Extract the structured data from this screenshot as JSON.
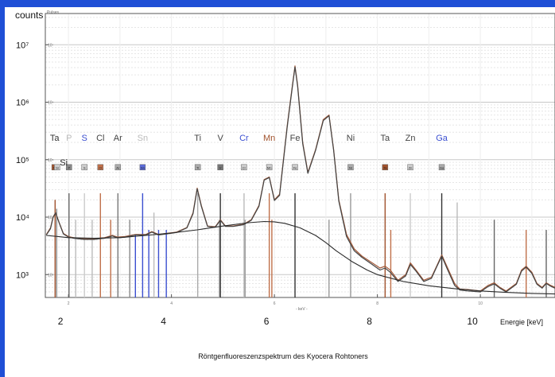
{
  "chart_data": {
    "type": "line",
    "title": "",
    "caption": "Röntgenfluoreszenzspektrum des Kyocera Rohtoners",
    "ylabel": "counts",
    "ylabel_small": "Pulses",
    "xlabel": "Energie [keV]",
    "xlabel_small": "- keV -",
    "xlim": [
      1.55,
      11.45
    ],
    "ylim": [
      400,
      35000000
    ],
    "yscale": "log",
    "grid": true,
    "x_ticks": [
      2,
      4,
      6,
      8,
      10
    ],
    "y_ticks": [
      {
        "value": 1000,
        "label": "10³",
        "small": "10³"
      },
      {
        "value": 10000,
        "label": "10⁴",
        "small": "10⁴"
      },
      {
        "value": 100000,
        "label": "10⁵",
        "small": "10⁵"
      },
      {
        "value": 1000000,
        "label": "10⁶",
        "small": "10⁶"
      },
      {
        "value": 10000000,
        "label": "10⁷",
        "small": "10⁷"
      }
    ],
    "element_labels": [
      {
        "text": "Ta",
        "x": 1.73,
        "color": "#333333"
      },
      {
        "text": "P",
        "x": 2.01,
        "color": "#bbbbbb"
      },
      {
        "text": "S",
        "x": 2.31,
        "color": "#3b4fd0"
      },
      {
        "text": "Cl",
        "x": 2.62,
        "color": "#444444"
      },
      {
        "text": "Ar",
        "x": 2.96,
        "color": "#444444"
      },
      {
        "text": "Sn",
        "x": 3.44,
        "color": "#bbbbbb"
      },
      {
        "text": "Ti",
        "x": 4.51,
        "color": "#444444"
      },
      {
        "text": "V",
        "x": 4.95,
        "color": "#444444"
      },
      {
        "text": "Cr",
        "x": 5.41,
        "color": "#3b4fd0"
      },
      {
        "text": "Mn",
        "x": 5.9,
        "color": "#a0522d"
      },
      {
        "text": "Fe",
        "x": 6.4,
        "color": "#444444"
      },
      {
        "text": "Ni",
        "x": 7.48,
        "color": "#444444"
      },
      {
        "text": "Ta",
        "x": 8.15,
        "color": "#444444"
      },
      {
        "text": "Zn",
        "x": 8.64,
        "color": "#444444"
      },
      {
        "text": "Ga",
        "x": 9.25,
        "color": "#3b4fd0"
      }
    ],
    "si_label": {
      "text": "Si",
      "x": 1.74
    },
    "marker_boxes": [
      {
        "text": "Ta",
        "x": 1.73,
        "fill": "#a0522d"
      },
      {
        "text": "Si",
        "x": 1.78,
        "fill": "#cccccc"
      },
      {
        "text": "P",
        "x": 2.01,
        "fill": "#888888"
      },
      {
        "text": "S",
        "x": 2.31,
        "fill": "#cccccc"
      },
      {
        "text": "Cl",
        "x": 2.62,
        "fill": "#c0704a"
      },
      {
        "text": "Ar",
        "x": 2.96,
        "fill": "#aaaaaa"
      },
      {
        "text": "Sn",
        "x": 3.44,
        "fill": "#5a6ad8"
      },
      {
        "text": "Ti",
        "x": 4.51,
        "fill": "#aaaaaa"
      },
      {
        "text": "V",
        "x": 4.95,
        "fill": "#777777"
      },
      {
        "text": "Cr",
        "x": 5.41,
        "fill": "#cccccc"
      },
      {
        "text": "Mn",
        "x": 5.9,
        "fill": "#cccccc"
      },
      {
        "text": "Fe",
        "x": 6.4,
        "fill": "#cccccc"
      },
      {
        "text": "Ni",
        "x": 7.48,
        "fill": "#aaaaaa"
      },
      {
        "text": "Ta",
        "x": 8.15,
        "fill": "#a0522d"
      },
      {
        "text": "Zn",
        "x": 8.64,
        "fill": "#cccccc"
      },
      {
        "text": "Ga",
        "x": 9.25,
        "fill": "#aaaaaa"
      }
    ],
    "line_markers": [
      {
        "x": 1.74,
        "top": 20000,
        "color": "#a0522d"
      },
      {
        "x": 1.77,
        "top": 14000,
        "color": "#888888"
      },
      {
        "x": 2.01,
        "top": 26000,
        "color": "#666666"
      },
      {
        "x": 2.14,
        "top": 9000,
        "color": "#bbbbbb"
      },
      {
        "x": 2.31,
        "top": 26000,
        "color": "#cccccc"
      },
      {
        "x": 2.46,
        "top": 9000,
        "color": "#bbbbbb"
      },
      {
        "x": 2.62,
        "top": 26000,
        "color": "#c0704a"
      },
      {
        "x": 2.82,
        "top": 9000,
        "color": "#c0704a"
      },
      {
        "x": 2.96,
        "top": 26000,
        "color": "#777777"
      },
      {
        "x": 3.19,
        "top": 9000,
        "color": "#888888"
      },
      {
        "x": 3.3,
        "top": 5000,
        "color": "#3b4fd0"
      },
      {
        "x": 3.44,
        "top": 26000,
        "color": "#3b4fd0"
      },
      {
        "x": 3.56,
        "top": 6000,
        "color": "#3b4fd0"
      },
      {
        "x": 3.66,
        "top": 12000,
        "color": "#bbbbbb"
      },
      {
        "x": 3.75,
        "top": 6000,
        "color": "#3b4fd0"
      },
      {
        "x": 3.9,
        "top": 6000,
        "color": "#3b4fd0"
      },
      {
        "x": 4.51,
        "top": 26000,
        "color": "#aaaaaa"
      },
      {
        "x": 4.93,
        "top": 9000,
        "color": "#aaaaaa"
      },
      {
        "x": 4.95,
        "top": 26000,
        "color": "#333333"
      },
      {
        "x": 5.41,
        "top": 26000,
        "color": "#bbbbbb"
      },
      {
        "x": 5.43,
        "top": 9000,
        "color": "#999999"
      },
      {
        "x": 5.9,
        "top": 26000,
        "color": "#c0704a"
      },
      {
        "x": 5.95,
        "top": 9000,
        "color": "#c0704a"
      },
      {
        "x": 6.4,
        "top": 26000,
        "color": "#333333"
      },
      {
        "x": 7.06,
        "top": 9000,
        "color": "#999999"
      },
      {
        "x": 7.48,
        "top": 26000,
        "color": "#999999"
      },
      {
        "x": 8.15,
        "top": 26000,
        "color": "#a0522d"
      },
      {
        "x": 8.26,
        "top": 6000,
        "color": "#c0704a"
      },
      {
        "x": 8.64,
        "top": 26000,
        "color": "#cccccc"
      },
      {
        "x": 9.25,
        "top": 26000,
        "color": "#333333"
      },
      {
        "x": 9.55,
        "top": 18000,
        "color": "#bbbbbb"
      },
      {
        "x": 10.27,
        "top": 9000,
        "color": "#666666"
      },
      {
        "x": 10.89,
        "top": 6000,
        "color": "#c0704a"
      },
      {
        "x": 11.28,
        "top": 6000,
        "color": "#666666"
      }
    ],
    "series": [
      {
        "name": "",
        "color": "#a35a3a",
        "x": [
          1.57,
          1.65,
          1.7,
          1.75,
          1.82,
          1.9,
          2.0,
          2.1,
          2.3,
          2.5,
          2.7,
          2.85,
          2.95,
          3.1,
          3.3,
          3.5,
          3.62,
          3.75,
          3.9,
          4.1,
          4.3,
          4.42,
          4.5,
          4.58,
          4.7,
          4.85,
          4.95,
          5.05,
          5.2,
          5.4,
          5.55,
          5.7,
          5.8,
          5.9,
          6.0,
          6.1,
          6.25,
          6.35,
          6.4,
          6.45,
          6.55,
          6.65,
          6.8,
          6.95,
          7.06,
          7.15,
          7.25,
          7.4,
          7.55,
          7.7,
          7.9,
          8.05,
          8.15,
          8.25,
          8.4,
          8.55,
          8.64,
          8.75,
          8.9,
          9.05,
          9.15,
          9.25,
          9.35,
          9.5,
          9.6,
          9.75,
          10.0,
          10.15,
          10.27,
          10.38,
          10.5,
          10.7,
          10.8,
          10.89,
          11.0,
          11.1,
          11.2,
          11.28,
          11.35,
          11.45
        ],
        "y": [
          5000,
          6500,
          10000,
          12000,
          8000,
          5200,
          4600,
          4400,
          4200,
          4200,
          4400,
          4800,
          4500,
          4600,
          5000,
          5000,
          5600,
          5000,
          5200,
          5500,
          6600,
          12000,
          32000,
          16000,
          7000,
          6800,
          9000,
          7000,
          7000,
          7500,
          9000,
          16000,
          45000,
          50000,
          20000,
          25000,
          400000,
          2000000,
          4300000,
          2000000,
          200000,
          60000,
          150000,
          500000,
          600000,
          150000,
          20000,
          5000,
          2800,
          2100,
          1600,
          1300,
          1400,
          1200,
          800,
          1000,
          1600,
          1200,
          800,
          900,
          1400,
          2200,
          1400,
          700,
          560,
          550,
          520,
          650,
          720,
          600,
          520,
          700,
          1200,
          1400,
          1100,
          700,
          600,
          720,
          660,
          600
        ]
      },
      {
        "name": "",
        "color": "#444444",
        "x": [
          1.57,
          1.65,
          1.7,
          1.75,
          1.82,
          1.9,
          2.0,
          2.1,
          2.3,
          2.5,
          2.7,
          2.85,
          2.95,
          3.1,
          3.3,
          3.5,
          3.62,
          3.75,
          3.9,
          4.1,
          4.3,
          4.42,
          4.5,
          4.58,
          4.7,
          4.85,
          4.95,
          5.05,
          5.2,
          5.4,
          5.55,
          5.7,
          5.8,
          5.9,
          6.0,
          6.1,
          6.25,
          6.35,
          6.4,
          6.45,
          6.55,
          6.65,
          6.8,
          6.95,
          7.06,
          7.15,
          7.25,
          7.4,
          7.55,
          7.7,
          7.9,
          8.05,
          8.15,
          8.25,
          8.4,
          8.55,
          8.64,
          8.75,
          8.9,
          9.05,
          9.15,
          9.25,
          9.35,
          9.5,
          9.6,
          9.75,
          10.0,
          10.15,
          10.27,
          10.38,
          10.5,
          10.7,
          10.8,
          10.89,
          11.0,
          11.1,
          11.2,
          11.28,
          11.35,
          11.45
        ],
        "y": [
          4900,
          6300,
          9800,
          11800,
          7900,
          5100,
          4500,
          4300,
          4100,
          4100,
          4300,
          4700,
          4400,
          4500,
          4900,
          4900,
          5500,
          4900,
          5100,
          5400,
          6500,
          11500,
          31000,
          15500,
          6900,
          6700,
          8800,
          6900,
          6900,
          7400,
          8800,
          15500,
          44000,
          49000,
          19500,
          24000,
          380000,
          1900000,
          4100000,
          1900000,
          190000,
          58000,
          145000,
          480000,
          580000,
          145000,
          19000,
          4600,
          2600,
          2000,
          1500,
          1200,
          1300,
          1100,
          760,
          950,
          1500,
          1150,
          760,
          860,
          1350,
          2100,
          1300,
          650,
          540,
          520,
          500,
          620,
          690,
          580,
          500,
          680,
          1150,
          1350,
          1050,
          680,
          580,
          700,
          640,
          580
        ]
      },
      {
        "name": "",
        "color": "#2a2a2a",
        "x": [
          1.57,
          1.8,
          2.0,
          2.5,
          3.0,
          3.5,
          4.0,
          4.5,
          5.0,
          5.5,
          5.8,
          6.0,
          6.2,
          6.5,
          6.8,
          7.0,
          7.2,
          7.5,
          7.8,
          8.0,
          8.5,
          9.0,
          9.5,
          10.0,
          10.5,
          11.0,
          11.45
        ],
        "y": [
          4800,
          4600,
          4400,
          4300,
          4400,
          4800,
          5300,
          6000,
          7000,
          8000,
          8400,
          8300,
          7800,
          6500,
          4800,
          3600,
          2600,
          1700,
          1200,
          1000,
          760,
          640,
          570,
          520,
          490,
          470,
          460
        ]
      }
    ]
  }
}
